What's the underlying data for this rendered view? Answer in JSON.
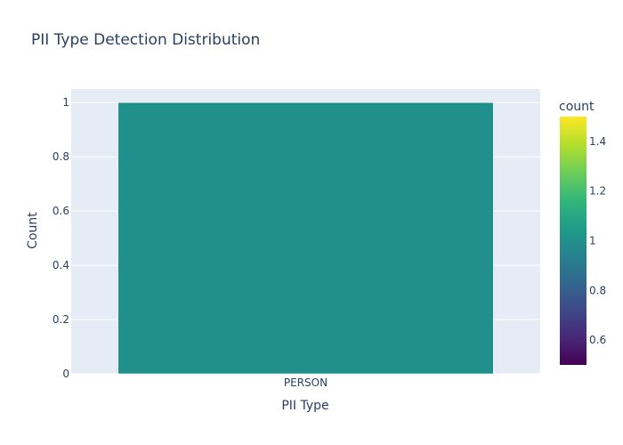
{
  "chart_data": {
    "type": "bar",
    "title": "PII Type Detection Distribution",
    "xlabel": "PII Type",
    "ylabel": "Count",
    "categories": [
      "PERSON"
    ],
    "values": [
      1
    ],
    "ylim": [
      0,
      1.05
    ],
    "y_ticks": [
      "0",
      "0.2",
      "0.4",
      "0.6",
      "0.8",
      "1"
    ],
    "bar_color": "#21908d",
    "plot_background": "#e5ecf6",
    "grid": true,
    "legend": "none",
    "colorbar": {
      "title": "count",
      "range": [
        0.5,
        1.5
      ],
      "ticks": [
        "0.6",
        "0.8",
        "1",
        "1.2",
        "1.4"
      ],
      "colorscale": "viridis"
    }
  }
}
